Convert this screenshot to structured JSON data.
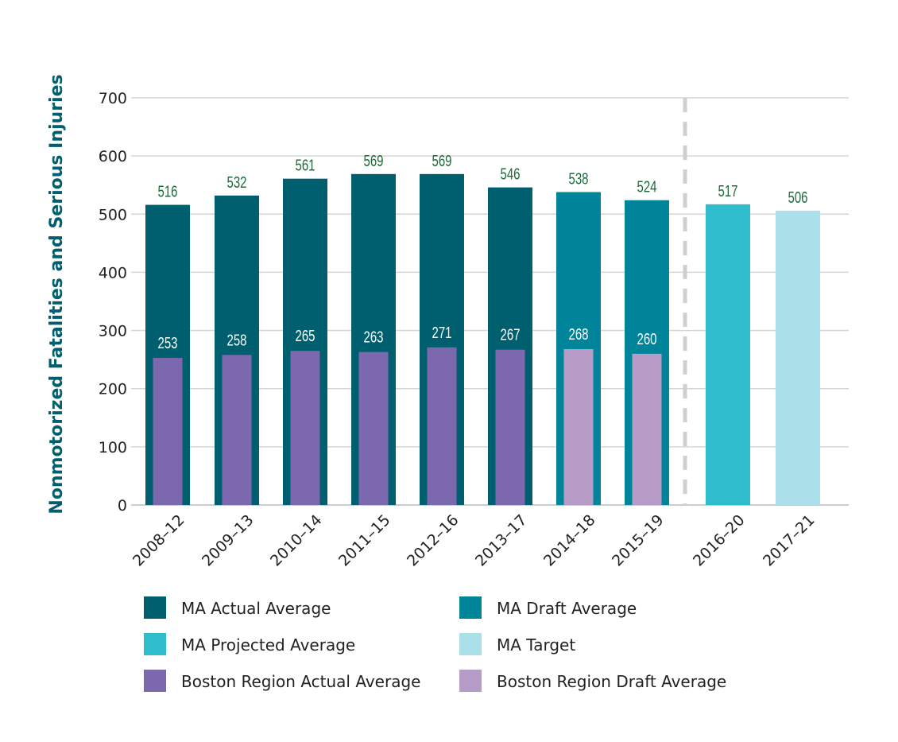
{
  "chart_data": {
    "type": "bar",
    "title": "",
    "xlabel": "",
    "ylabel": "Nonmotorized Fatalities and Serious Injuries",
    "ylim": [
      0,
      700
    ],
    "yticks": [
      0,
      100,
      200,
      300,
      400,
      500,
      600,
      700
    ],
    "grid": true,
    "categories": [
      "2008–12",
      "2009–13",
      "2010–14",
      "2011–15",
      "2012–16",
      "2013–17",
      "2014–18",
      "2015–19",
      "2016–20",
      "2017–21"
    ],
    "ma_values": [
      516,
      532,
      561,
      569,
      569,
      546,
      538,
      524,
      517,
      506
    ],
    "ma_types": [
      "actual",
      "actual",
      "actual",
      "actual",
      "actual",
      "actual",
      "draft",
      "draft",
      "projected",
      "target"
    ],
    "boston_values": [
      253,
      258,
      265,
      263,
      271,
      267,
      268,
      260,
      null,
      null
    ],
    "boston_types": [
      "bactual",
      "bactual",
      "bactual",
      "bactual",
      "bactual",
      "bactual",
      "bdraft",
      "bdraft",
      null,
      null
    ],
    "divider_after_category": "2015–19",
    "legend_position": "bottom",
    "legend": [
      {
        "key": "actual",
        "label": "MA Actual Average",
        "color": "#005f6e"
      },
      {
        "key": "draft",
        "label": "MA Draft Average",
        "color": "#00849a"
      },
      {
        "key": "projected",
        "label": "MA Projected Average",
        "color": "#2fbccc"
      },
      {
        "key": "target",
        "label": "MA Target",
        "color": "#abdfe9"
      },
      {
        "key": "bactual",
        "label": "Boston Region Actual Average",
        "color": "#7b68ae"
      },
      {
        "key": "bdraft",
        "label": "Boston Region Draft Average",
        "color": "#b89cc8"
      }
    ],
    "label_colors": {
      "outer": "#1d6b3a",
      "inner": "#ffffff"
    }
  }
}
